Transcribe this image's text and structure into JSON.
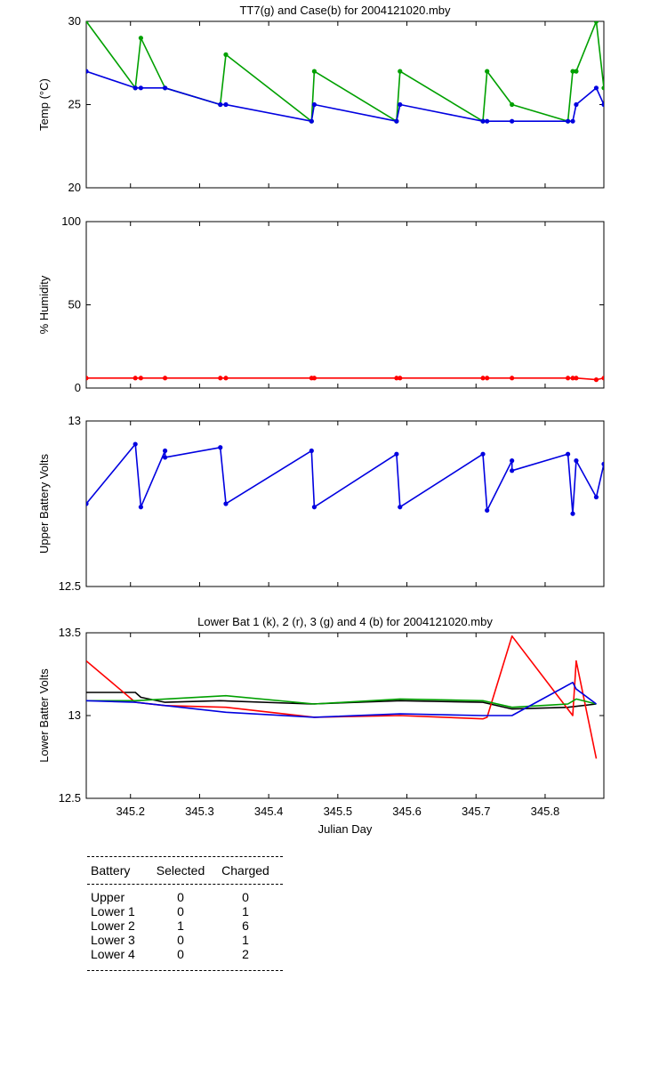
{
  "chart_data": [
    {
      "type": "line",
      "title": "TT7(g) and Case(b) for 2004121020.mby",
      "xlabel": "",
      "ylabel": "Temp  (°C)",
      "xlim": [
        345.136,
        345.885
      ],
      "ylim": [
        20,
        30
      ],
      "yticks": [
        "20",
        "25",
        "30"
      ],
      "xticks": [
        "345.2",
        "345.3",
        "345.4",
        "345.5",
        "345.6",
        "345.7",
        "345.8"
      ],
      "series": [
        {
          "color": "#00a000",
          "x": [
            345.136,
            345.207,
            345.215,
            345.25,
            345.33,
            345.338,
            345.462,
            345.466,
            345.585,
            345.59,
            345.71,
            345.716,
            345.752,
            345.833,
            345.84,
            345.845,
            345.874,
            345.885
          ],
          "y": [
            30,
            26,
            29,
            26,
            25,
            28,
            24,
            27,
            24,
            27,
            24,
            27,
            25,
            24,
            27,
            27,
            30,
            26
          ]
        },
        {
          "color": "#0000e0",
          "x": [
            345.136,
            345.207,
            345.215,
            345.25,
            345.33,
            345.338,
            345.462,
            345.466,
            345.585,
            345.59,
            345.71,
            345.716,
            345.752,
            345.833,
            345.84,
            345.845,
            345.874,
            345.885
          ],
          "y": [
            27,
            26,
            26,
            26,
            25,
            25,
            24,
            25,
            24,
            25,
            24,
            24,
            24,
            24,
            24,
            25,
            26,
            25
          ]
        }
      ]
    },
    {
      "type": "line",
      "title": "",
      "xlabel": "",
      "ylabel": "% Humidity",
      "xlim": [
        345.136,
        345.885
      ],
      "ylim": [
        0,
        100
      ],
      "yticks": [
        "0",
        "50",
        "100"
      ],
      "xticks": [
        "345.2",
        "345.3",
        "345.4",
        "345.5",
        "345.6",
        "345.7",
        "345.8"
      ],
      "series": [
        {
          "color": "#ff0000",
          "x": [
            345.136,
            345.207,
            345.215,
            345.25,
            345.33,
            345.338,
            345.462,
            345.466,
            345.585,
            345.59,
            345.71,
            345.716,
            345.752,
            345.833,
            345.84,
            345.845,
            345.874,
            345.885
          ],
          "y": [
            6,
            6,
            6,
            6,
            6,
            6,
            6,
            6,
            6,
            6,
            6,
            6,
            6,
            6,
            6,
            6,
            5,
            6
          ]
        }
      ]
    },
    {
      "type": "line",
      "title": "",
      "xlabel": "",
      "ylabel": "Upper Battery Volts",
      "xlim": [
        345.136,
        345.885
      ],
      "ylim": [
        12.5,
        13
      ],
      "yticks": [
        "12.5",
        "13"
      ],
      "xticks": [
        "345.2",
        "345.3",
        "345.4",
        "345.5",
        "345.6",
        "345.7",
        "345.8"
      ],
      "series": [
        {
          "color": "#0000e0",
          "x": [
            345.136,
            345.207,
            345.215,
            345.25,
            345.25,
            345.33,
            345.338,
            345.462,
            345.466,
            345.585,
            345.59,
            345.71,
            345.716,
            345.752,
            345.752,
            345.833,
            345.84,
            345.845,
            345.874,
            345.885
          ],
          "y": [
            12.75,
            12.93,
            12.74,
            12.91,
            12.89,
            12.92,
            12.75,
            12.91,
            12.74,
            12.9,
            12.74,
            12.9,
            12.73,
            12.88,
            12.85,
            12.9,
            12.72,
            12.88,
            12.77,
            12.87
          ]
        }
      ]
    },
    {
      "type": "line",
      "title": "Lower Bat 1 (k), 2 (r), 3 (g) and 4 (b) for 2004121020.mby",
      "xlabel": "Julian Day",
      "ylabel": "Lower Batter Volts",
      "xlim": [
        345.136,
        345.885
      ],
      "ylim": [
        12.5,
        13.5
      ],
      "yticks": [
        "12.5",
        "13",
        "13.5"
      ],
      "xticks": [
        "345.2",
        "345.3",
        "345.4",
        "345.5",
        "345.6",
        "345.7",
        "345.8"
      ],
      "series": [
        {
          "color": "#000000",
          "x": [
            345.136,
            345.207,
            345.215,
            345.25,
            345.33,
            345.462,
            345.59,
            345.71,
            345.752,
            345.833,
            345.874
          ],
          "y": [
            13.14,
            13.14,
            13.11,
            13.08,
            13.09,
            13.07,
            13.09,
            13.08,
            13.04,
            13.05,
            13.07
          ]
        },
        {
          "color": "#ff0000",
          "x": [
            345.136,
            345.207,
            345.25,
            345.338,
            345.466,
            345.59,
            345.71,
            345.716,
            345.752,
            345.84,
            345.845,
            345.874
          ],
          "y": [
            13.33,
            13.08,
            13.06,
            13.05,
            12.99,
            13.0,
            12.98,
            12.99,
            13.48,
            13.0,
            13.33,
            12.74
          ]
        },
        {
          "color": "#00a000",
          "x": [
            345.136,
            345.207,
            345.338,
            345.466,
            345.59,
            345.71,
            345.752,
            345.833,
            345.845,
            345.874
          ],
          "y": [
            13.09,
            13.09,
            13.12,
            13.07,
            13.1,
            13.09,
            13.05,
            13.07,
            13.1,
            13.07
          ]
        },
        {
          "color": "#0000e0",
          "x": [
            345.136,
            345.207,
            345.338,
            345.466,
            345.59,
            345.71,
            345.752,
            345.84,
            345.845,
            345.874
          ],
          "y": [
            13.09,
            13.08,
            13.02,
            12.99,
            13.01,
            13.0,
            13.0,
            13.2,
            13.16,
            13.07
          ]
        }
      ]
    }
  ],
  "summary_table": {
    "headers": [
      "Battery",
      "Selected",
      "Charged"
    ],
    "rows": [
      [
        "Upper",
        "0",
        "0"
      ],
      [
        "Lower 1",
        "0",
        "1"
      ],
      [
        "Lower 2",
        "1",
        "6"
      ],
      [
        "Lower 3",
        "0",
        "1"
      ],
      [
        "Lower 4",
        "0",
        "2"
      ]
    ]
  }
}
